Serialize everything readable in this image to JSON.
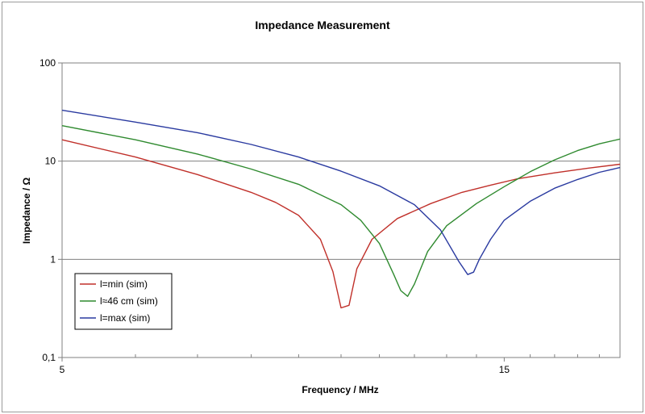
{
  "chart_data": {
    "type": "line",
    "title": "Impedance Measurement",
    "xlabel": "Frequency / MHz",
    "ylabel": "Impedance / Ω",
    "x_scale": "log",
    "y_scale": "log",
    "xlim": [
      5,
      20
    ],
    "ylim": [
      0.1,
      100
    ],
    "x_tick_labels": [
      {
        "value": 5,
        "label": "5"
      },
      {
        "value": 15,
        "label": "15"
      }
    ],
    "x_minor_ticks": [
      6,
      7,
      8,
      9,
      10,
      11,
      12,
      13,
      14,
      16,
      17,
      18,
      19
    ],
    "y_tick_labels": [
      {
        "value": 100,
        "label": "100"
      },
      {
        "value": 10,
        "label": "10"
      },
      {
        "value": 1,
        "label": "1"
      },
      {
        "value": 0.1,
        "label": "0,1"
      }
    ],
    "gridlines": "horizontal at decades",
    "legend_position": "bottom-left",
    "series": [
      {
        "name": "l=min (sim)",
        "color": "#c0302a",
        "x": [
          5,
          6,
          7,
          8,
          8.5,
          9,
          9.5,
          9.8,
          10.0,
          10.2,
          10.4,
          10.8,
          11.5,
          12.5,
          13.5,
          14.5,
          15.5,
          17,
          18.5,
          20
        ],
        "y": [
          16.5,
          11.0,
          7.3,
          4.8,
          3.8,
          2.8,
          1.6,
          0.75,
          0.32,
          0.34,
          0.8,
          1.6,
          2.6,
          3.7,
          4.8,
          5.7,
          6.6,
          7.6,
          8.5,
          9.3
        ]
      },
      {
        "name": "l≈46 cm (sim)",
        "color": "#2f8a2f",
        "x": [
          5,
          6,
          7,
          8,
          9,
          10,
          10.5,
          11.0,
          11.4,
          11.6,
          11.8,
          12.0,
          12.4,
          13,
          14,
          15,
          16,
          17,
          18,
          19,
          20
        ],
        "y": [
          23,
          16.5,
          11.8,
          8.3,
          5.8,
          3.6,
          2.5,
          1.45,
          0.7,
          0.48,
          0.42,
          0.56,
          1.2,
          2.2,
          3.7,
          5.5,
          7.8,
          10.3,
          12.8,
          15.0,
          16.8
        ]
      },
      {
        "name": "l=max (sim)",
        "color": "#2a3aa0",
        "x": [
          5,
          6,
          7,
          8,
          9,
          10,
          11,
          12,
          12.8,
          13.4,
          13.7,
          13.9,
          14.1,
          14.5,
          15,
          16,
          17,
          18,
          19,
          20
        ],
        "y": [
          33,
          25,
          19.5,
          14.8,
          11.0,
          7.9,
          5.6,
          3.6,
          2.0,
          0.95,
          0.7,
          0.74,
          1.0,
          1.6,
          2.5,
          3.9,
          5.3,
          6.5,
          7.7,
          8.6
        ]
      }
    ]
  }
}
